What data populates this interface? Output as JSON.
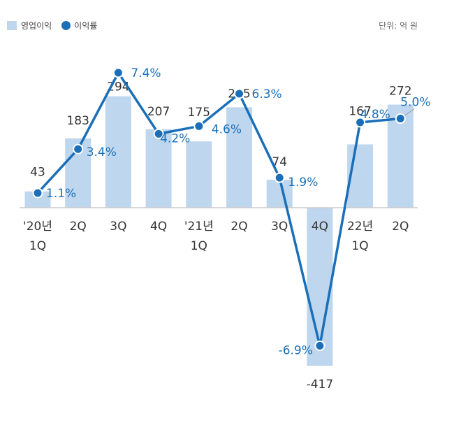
{
  "legend": {
    "bar_label": "영업이익",
    "line_label": "이익률"
  },
  "unit_label": "단위: 억 원",
  "colors": {
    "bar": "#bfd6ef",
    "line": "#1a6fb8",
    "value_text": "#333333",
    "rate_text": "#1a6fb8",
    "axis": "#cccccc"
  },
  "chart_data": {
    "type": "bar",
    "categories": [
      "'20년\n1Q",
      "2Q",
      "3Q",
      "4Q",
      "'21년\n1Q",
      "2Q",
      "3Q",
      "4Q",
      "22년\n1Q",
      "2Q"
    ],
    "series": [
      {
        "name": "영업이익",
        "type": "bar",
        "values": [
          43,
          183,
          294,
          207,
          175,
          265,
          74,
          -417,
          167,
          272
        ]
      },
      {
        "name": "이익률",
        "type": "line",
        "values": [
          1.1,
          3.4,
          7.4,
          4.2,
          4.6,
          6.3,
          1.9,
          -6.9,
          4.8,
          5.0
        ]
      }
    ],
    "value_labels": [
      "43",
      "183",
      "294",
      "207",
      "175",
      "265",
      "74",
      "-417",
      "167",
      "272"
    ],
    "rate_labels": [
      "1.1%",
      "3.4%",
      "7.4%",
      "4.2%",
      "4.6%",
      "6.3%",
      "1.9%",
      "-6.9%",
      "4.8%",
      "5.0%"
    ],
    "grid": false,
    "legend_position": "top-left"
  }
}
